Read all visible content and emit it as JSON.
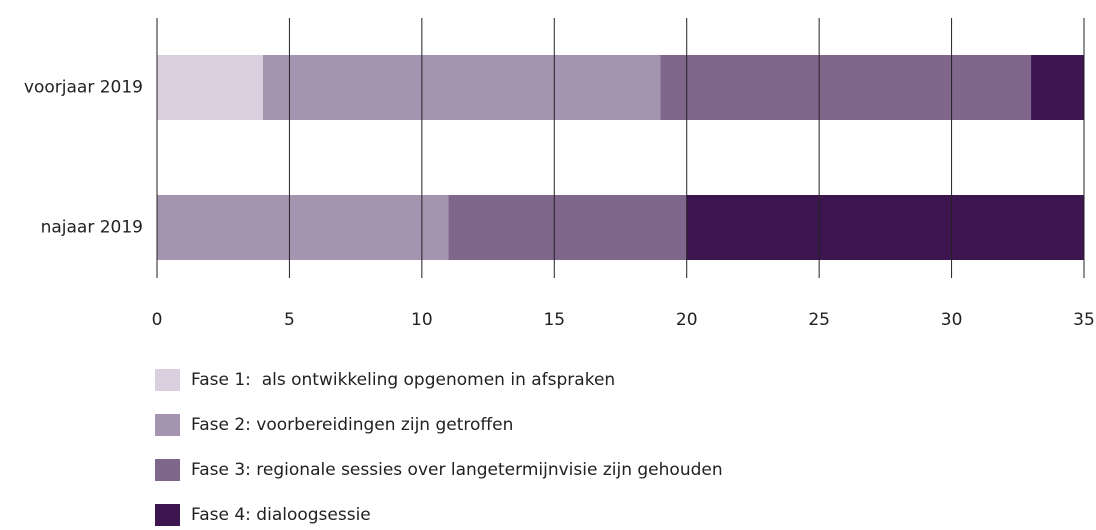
{
  "chart_data": {
    "type": "stacked-barh",
    "categories": [
      "voorjaar 2019",
      "najaar 2019"
    ],
    "series": [
      {
        "name": "Fase 1:  als ontwikkeling opgenomen in afspraken",
        "color": "#d8d0de",
        "values": [
          4,
          0
        ]
      },
      {
        "name": "Fase 2: voorbereidingen zijn getroffen",
        "color": "#a494b0",
        "values": [
          15,
          11
        ]
      },
      {
        "name": "Fase 3: regionale sessies over langetermijnvisie zijn gehouden",
        "color": "#7f678c",
        "values": [
          14,
          9
        ]
      },
      {
        "name": "Fase 4: dialoogsessie",
        "color": "#3d1650",
        "values": [
          2,
          15
        ]
      }
    ],
    "xlim": [
      0,
      35
    ],
    "xticks": [
      0,
      5,
      10,
      15,
      20,
      25,
      30,
      35
    ],
    "grid": true
  }
}
